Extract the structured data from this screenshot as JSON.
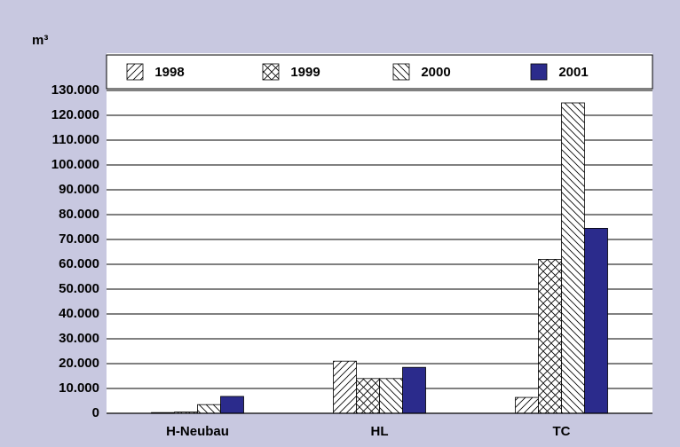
{
  "chart_data": {
    "type": "bar",
    "y_axis_label": "m³",
    "categories": [
      "H-Neubau",
      "HL",
      "TC"
    ],
    "series": [
      {
        "name": "1998",
        "color": "#000000",
        "pattern": "diagonal",
        "values": [
          300,
          21000,
          6400
        ]
      },
      {
        "name": "1999",
        "color": "#000000",
        "pattern": "cross",
        "values": [
          500,
          14000,
          62000
        ]
      },
      {
        "name": "2000",
        "color": "#000000",
        "pattern": "backdiagonal",
        "values": [
          3500,
          14000,
          125000
        ]
      },
      {
        "name": "2001",
        "color": "#2b2b8c",
        "pattern": "solid",
        "values": [
          6800,
          18500,
          74500
        ]
      }
    ],
    "ylim": [
      0,
      130000
    ],
    "yticks": [
      0,
      {
        "value": 10000,
        "label": "10.000"
      },
      {
        "value": 20000,
        "label": "20.000"
      },
      {
        "value": 30000,
        "label": "30.000"
      },
      {
        "value": 40000,
        "label": "40.000"
      },
      {
        "value": 50000,
        "label": "50.000"
      },
      {
        "value": 60000,
        "label": "60.000"
      },
      {
        "value": 70000,
        "label": "70.000"
      },
      {
        "value": 80000,
        "label": "80.000"
      },
      {
        "value": 90000,
        "label": "90.000"
      },
      {
        "value": 100000,
        "label": "100.000"
      },
      {
        "value": 110000,
        "label": "110.000"
      },
      {
        "value": 120000,
        "label": "120.000"
      },
      {
        "value": 130000,
        "label": "130.000"
      }
    ],
    "grid": true,
    "legend": "top"
  }
}
